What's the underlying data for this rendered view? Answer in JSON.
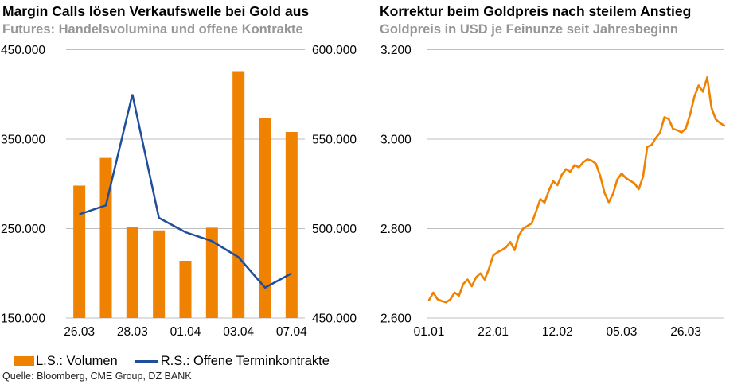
{
  "source": "Quelle: Bloomberg, CME Group, DZ BANK",
  "colors": {
    "orange": "#EF8200",
    "blue": "#1F4E9C",
    "grid": "#BFBFBF",
    "subtitle_gray": "#969696",
    "text": "#000000"
  },
  "legend": {
    "items": [
      {
        "label": "L.S.: Volumen",
        "swatch": "bar",
        "color": "#EF8200"
      },
      {
        "label": "R.S.: Offene Terminkontrakte",
        "swatch": "line",
        "color": "#1F4E9C"
      }
    ]
  },
  "chart_data": [
    {
      "type": "bar",
      "title": "Margin Calls lösen Verkaufswelle bei Gold aus",
      "subtitle": "Futures: Handelsvolumina und offene Kontrakte",
      "grid": true,
      "legend_position": "bottom",
      "left_axis": {
        "min": 150000,
        "max": 450000,
        "ticks": [
          {
            "label": "450.000",
            "value": 450000
          },
          {
            "label": "350.000",
            "value": 350000
          },
          {
            "label": "250.000",
            "value": 250000
          },
          {
            "label": "150.000",
            "value": 150000
          }
        ]
      },
      "right_axis": {
        "min": 450000,
        "max": 600000,
        "ticks": [
          {
            "label": "600.000",
            "value": 600000
          },
          {
            "label": "550.000",
            "value": 550000
          },
          {
            "label": "500.000",
            "value": 500000
          },
          {
            "label": "450.000",
            "value": 450000
          }
        ]
      },
      "x_labels": [
        {
          "label": "26.03",
          "bar_index": 0
        },
        {
          "label": "28.03",
          "bar_index": 2
        },
        {
          "label": "01.04",
          "bar_index": 4
        },
        {
          "label": "03.04",
          "bar_index": 6
        },
        {
          "label": "07.04",
          "bar_index": 8
        }
      ],
      "bar_series": {
        "name": "L.S.: Volumen",
        "axis": "left",
        "color": "#EF8200",
        "values": [
          298000,
          329000,
          252000,
          248000,
          214000,
          251000,
          426000,
          374000,
          358000
        ]
      },
      "line_series": {
        "name": "R.S.: Offene Terminkontrakte",
        "axis": "right",
        "color": "#1F4E9C",
        "values": [
          508000,
          513000,
          575000,
          506000,
          498000,
          493000,
          484000,
          467000,
          475000
        ]
      }
    },
    {
      "type": "line",
      "title": "Korrektur beim Goldpreis nach steilem Anstieg",
      "subtitle": "Goldpreis in USD je Feinunze seit Jahresbeginn",
      "grid": true,
      "y_axis": {
        "min": 2600,
        "max": 3200,
        "ticks": [
          {
            "label": "3.200",
            "value": 3200
          },
          {
            "label": "3.000",
            "value": 3000
          },
          {
            "label": "2.800",
            "value": 2800
          },
          {
            "label": "2.600",
            "value": 2600
          }
        ]
      },
      "x_ticks": [
        {
          "label": "01.01",
          "index": 0
        },
        {
          "label": "22.01",
          "index": 15
        },
        {
          "label": "12.02",
          "index": 30
        },
        {
          "label": "05.03",
          "index": 45
        },
        {
          "label": "26.03",
          "index": 60
        }
      ],
      "series": [
        {
          "name": "Goldpreis",
          "color": "#EF8200",
          "values": [
            2640,
            2657,
            2642,
            2638,
            2635,
            2642,
            2657,
            2650,
            2676,
            2686,
            2671,
            2691,
            2700,
            2686,
            2710,
            2740,
            2747,
            2752,
            2758,
            2770,
            2752,
            2785,
            2800,
            2806,
            2812,
            2838,
            2866,
            2858,
            2885,
            2906,
            2897,
            2920,
            2933,
            2927,
            2942,
            2937,
            2948,
            2955,
            2952,
            2945,
            2918,
            2880,
            2859,
            2878,
            2910,
            2923,
            2913,
            2907,
            2901,
            2888,
            2916,
            2983,
            2987,
            3003,
            3015,
            3049,
            3045,
            3023,
            3020,
            3015,
            3024,
            3055,
            3095,
            3120,
            3106,
            3138,
            3070,
            3044,
            3036,
            3030
          ]
        }
      ]
    }
  ]
}
